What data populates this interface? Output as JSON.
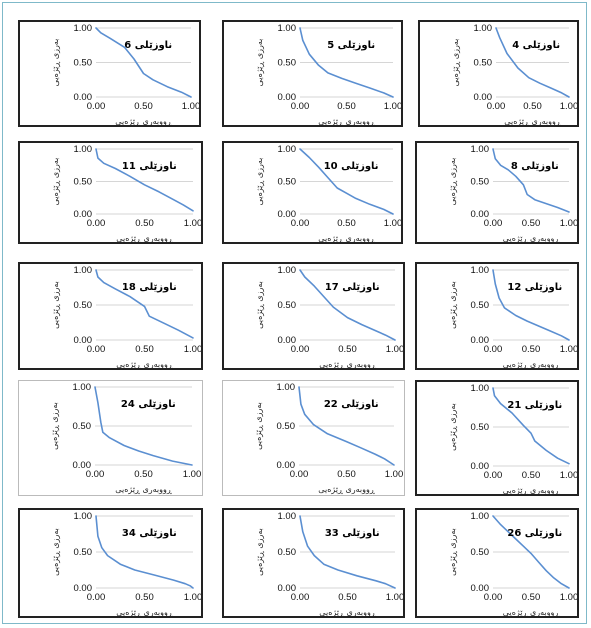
{
  "colors": {
    "curve": "#5b8fd1",
    "axis": "#c8c8c8",
    "frame": "#7fb9c9"
  },
  "charts": [
    {
      "title": "ناوزێلی 6",
      "ylabel": "بەرزی ڕێژەیی",
      "xlabel": "ڕووبەری ڕێژەیی",
      "x_ticks": [
        "0.00",
        "0.50",
        "1.00"
      ],
      "y_ticks": [
        "0.00",
        "0.50",
        "1.00"
      ]
    },
    {
      "title": "ناوزێلی 5",
      "ylabel": "بەرزی ڕێژەیی",
      "xlabel": "ڕووبەری ڕێژەیی",
      "x_ticks": [
        "0.00",
        "0.50",
        "1.00"
      ],
      "y_ticks": [
        "0.00",
        "0.50",
        "1.00"
      ]
    },
    {
      "title": "ناوزێلی 4",
      "ylabel": "بەرزی ڕێژەیی",
      "xlabel": "ڕووبەری ڕێژەیی",
      "x_ticks": [
        "0.00",
        "0.50",
        "1.00"
      ],
      "y_ticks": [
        "0.00",
        "0.50",
        "1.00"
      ]
    },
    {
      "title": "ناوزێلی 11",
      "ylabel": "بەرزی ڕێژەیی",
      "xlabel": "ڕووبەری ڕێژەیی",
      "x_ticks": [
        "0.00",
        "0.50",
        "1.00"
      ],
      "y_ticks": [
        "0.00",
        "0.50",
        "1.00"
      ]
    },
    {
      "title": "ناوزێلی 10",
      "ylabel": "بەرزی ڕێژەیی",
      "xlabel": "ڕووبەری ڕێژەیی",
      "x_ticks": [
        "0.00",
        "0.50",
        "1.00"
      ],
      "y_ticks": [
        "0.00",
        "0.50",
        "1.00"
      ]
    },
    {
      "title": "ناوزێلی 8",
      "ylabel": "بەرزی ڕێژەیی",
      "xlabel": "ڕووبەری ڕێژەیی",
      "x_ticks": [
        "0.00",
        "0.50",
        "1.00"
      ],
      "y_ticks": [
        "0.00",
        "0.50",
        "1.00"
      ]
    },
    {
      "title": "ناوزێلی 18",
      "ylabel": "بەرزی ڕێژەیی",
      "xlabel": "ڕووبەری ڕێژەیی",
      "x_ticks": [
        "0.00",
        "0.50",
        "1.00"
      ],
      "y_ticks": [
        "0.00",
        "0.50",
        "1.00"
      ]
    },
    {
      "title": "ناوزێلی 17",
      "ylabel": "بەرزی ڕێژەیی",
      "xlabel": "ڕووبەری ڕێژەیی",
      "x_ticks": [
        "0.00",
        "0.50",
        "1.00"
      ],
      "y_ticks": [
        "0.00",
        "0.50",
        "1.00"
      ]
    },
    {
      "title": "ناوزێلی 12",
      "ylabel": "بەرزی ڕێژەیی",
      "xlabel": "ڕووبەری ڕێژەیی",
      "x_ticks": [
        "0.00",
        "0.50",
        "1.00"
      ],
      "y_ticks": [
        "0.00",
        "0.50",
        "1.00"
      ]
    },
    {
      "title": "ناوزێلی 24",
      "ylabel": "بەرزی ڕێژەیی",
      "xlabel": "ڕووبەری ڕێژەیی",
      "x_ticks": [
        "0.00",
        "0.50",
        "1.00"
      ],
      "y_ticks": [
        "0.00",
        "0.50",
        "1.00"
      ]
    },
    {
      "title": "ناوزێلی 22",
      "ylabel": "بەرزی ڕێژەیی",
      "xlabel": "ڕووبەری ڕێژەیی",
      "x_ticks": [
        "0.00",
        "0.50",
        "1.00"
      ],
      "y_ticks": [
        "0.00",
        "0.50",
        "1.00"
      ]
    },
    {
      "title": "ناوزێلی 21",
      "ylabel": "بەرزی ڕێژەیی",
      "xlabel": "ڕووبەری ڕێژەیی",
      "x_ticks": [
        "0.00",
        "0.50",
        "1.00"
      ],
      "y_ticks": [
        "0.00",
        "0.50",
        "1.00"
      ]
    },
    {
      "title": "ناوزێلی 34",
      "ylabel": "بەرزی ڕێژەیی",
      "xlabel": "ڕووبەری ڕێژەیی",
      "x_ticks": [
        "0.00",
        "0.50",
        "1.00"
      ],
      "y_ticks": [
        "0.00",
        "0.50",
        "1.00"
      ]
    },
    {
      "title": "ناوزێلی 33",
      "ylabel": "بەرزی ڕێژەیی",
      "xlabel": "ڕووبەری ڕێژەیی",
      "x_ticks": [
        "0.00",
        "0.50",
        "1.00"
      ],
      "y_ticks": [
        "0.00",
        "0.50",
        "1.00"
      ]
    },
    {
      "title": "ناوزێلی 26",
      "ylabel": "بەرزی ڕێژەیی",
      "xlabel": "ڕووبەری ڕێژەیی",
      "x_ticks": [
        "0.00",
        "0.50",
        "1.00"
      ],
      "y_ticks": [
        "0.00",
        "0.50",
        "1.00"
      ]
    }
  ],
  "chart_data": [
    {
      "type": "line",
      "title": "ناوزێلی 6",
      "xlabel": "ڕووبەری ڕێژەیی",
      "ylabel": "بەرزی ڕێژەیی",
      "xlim": [
        0,
        1
      ],
      "ylim": [
        0,
        1
      ],
      "grid": true,
      "series": [
        {
          "x": [
            0,
            0.05,
            0.15,
            0.3,
            0.4,
            0.5,
            0.6,
            0.75,
            0.9,
            1.0
          ],
          "y": [
            1.0,
            0.93,
            0.85,
            0.72,
            0.55,
            0.34,
            0.25,
            0.15,
            0.07,
            0.0
          ]
        }
      ]
    },
    {
      "type": "line",
      "title": "ناوزێلی 5",
      "xlabel": "ڕووبەری ڕێژەیی",
      "ylabel": "بەرزی ڕێژەیی",
      "xlim": [
        0,
        1
      ],
      "ylim": [
        0,
        1
      ],
      "grid": true,
      "series": [
        {
          "x": [
            0,
            0.03,
            0.1,
            0.2,
            0.3,
            0.45,
            0.6,
            0.75,
            0.9,
            1.0
          ],
          "y": [
            1.0,
            0.82,
            0.62,
            0.46,
            0.35,
            0.27,
            0.2,
            0.13,
            0.06,
            0.0
          ]
        }
      ]
    },
    {
      "type": "line",
      "title": "ناوزێلی 4",
      "xlabel": "ڕووبەری ڕێژەیی",
      "ylabel": "بەرزی ڕێژەیی",
      "xlim": [
        0,
        1
      ],
      "ylim": [
        0,
        1
      ],
      "grid": true,
      "series": [
        {
          "x": [
            0,
            0.05,
            0.15,
            0.3,
            0.45,
            0.6,
            0.75,
            0.9,
            1.0
          ],
          "y": [
            1.0,
            0.86,
            0.63,
            0.42,
            0.28,
            0.2,
            0.13,
            0.06,
            0.0
          ]
        }
      ]
    },
    {
      "type": "line",
      "title": "ناوزێلی 11",
      "xlabel": "ڕووبەری ڕێژەیی",
      "ylabel": "بەرزی ڕێژەیی",
      "xlim": [
        0,
        1
      ],
      "ylim": [
        0,
        1
      ],
      "grid": true,
      "series": [
        {
          "x": [
            0,
            0.02,
            0.08,
            0.2,
            0.35,
            0.5,
            0.65,
            0.8,
            0.9,
            1.0
          ],
          "y": [
            1.0,
            0.86,
            0.78,
            0.7,
            0.58,
            0.45,
            0.34,
            0.22,
            0.14,
            0.05
          ]
        }
      ]
    },
    {
      "type": "line",
      "title": "ناوزێلی 10",
      "xlabel": "ڕووبەری ڕێژەیی",
      "ylabel": "بەرزی ڕێژەیی",
      "xlim": [
        0,
        1
      ],
      "ylim": [
        0,
        1
      ],
      "grid": true,
      "series": [
        {
          "x": [
            0,
            0.1,
            0.2,
            0.3,
            0.4,
            0.5,
            0.6,
            0.75,
            0.9,
            1.0
          ],
          "y": [
            1.0,
            0.87,
            0.72,
            0.56,
            0.4,
            0.32,
            0.24,
            0.15,
            0.07,
            0.0
          ]
        }
      ]
    },
    {
      "type": "line",
      "title": "ناوزێلی 8",
      "xlabel": "ڕووبەری ڕێژەیی",
      "ylabel": "بەرزی ڕێژەیی",
      "xlim": [
        0,
        1
      ],
      "ylim": [
        0,
        1
      ],
      "grid": true,
      "series": [
        {
          "x": [
            0,
            0.03,
            0.1,
            0.2,
            0.3,
            0.4,
            0.45,
            0.55,
            0.7,
            0.85,
            1.0
          ],
          "y": [
            1.0,
            0.85,
            0.75,
            0.68,
            0.58,
            0.45,
            0.3,
            0.22,
            0.16,
            0.1,
            0.03
          ]
        }
      ]
    },
    {
      "type": "line",
      "title": "ناوزێلی 18",
      "xlabel": "ڕووبەری ڕێژەیی",
      "ylabel": "بەرزی ڕێژەیی",
      "xlim": [
        0,
        1
      ],
      "ylim": [
        0,
        1
      ],
      "grid": true,
      "series": [
        {
          "x": [
            0,
            0.02,
            0.08,
            0.2,
            0.35,
            0.5,
            0.55,
            0.7,
            0.85,
            1.0
          ],
          "y": [
            1.0,
            0.9,
            0.82,
            0.73,
            0.62,
            0.48,
            0.34,
            0.24,
            0.14,
            0.03
          ]
        }
      ]
    },
    {
      "type": "line",
      "title": "ناوزێلی 17",
      "xlabel": "ڕووبەری ڕێژەیی",
      "ylabel": "بەرزی ڕێژەیی",
      "xlim": [
        0,
        1
      ],
      "ylim": [
        0,
        1
      ],
      "grid": true,
      "series": [
        {
          "x": [
            0,
            0.05,
            0.15,
            0.25,
            0.35,
            0.5,
            0.65,
            0.8,
            0.9,
            1.0
          ],
          "y": [
            1.0,
            0.9,
            0.77,
            0.62,
            0.47,
            0.32,
            0.22,
            0.13,
            0.07,
            0.0
          ]
        }
      ]
    },
    {
      "type": "line",
      "title": "ناوزێلی 12",
      "xlabel": "ڕووبەری ڕێژەیی",
      "ylabel": "بەرزی ڕێژەیی",
      "xlim": [
        0,
        1
      ],
      "ylim": [
        0,
        1
      ],
      "grid": true,
      "series": [
        {
          "x": [
            0,
            0.03,
            0.08,
            0.15,
            0.3,
            0.45,
            0.6,
            0.75,
            0.9,
            1.0
          ],
          "y": [
            1.0,
            0.8,
            0.6,
            0.46,
            0.35,
            0.27,
            0.2,
            0.13,
            0.06,
            0.0
          ]
        }
      ]
    },
    {
      "type": "line",
      "title": "ناوزێلی 24",
      "xlabel": "ڕووبەری ڕێژەیی",
      "ylabel": "بەرزی ڕێژەیی",
      "xlim": [
        0,
        1
      ],
      "ylim": [
        0,
        1
      ],
      "grid": true,
      "series": [
        {
          "x": [
            0,
            0.03,
            0.06,
            0.08,
            0.15,
            0.3,
            0.45,
            0.6,
            0.8,
            1.0
          ],
          "y": [
            1.0,
            0.8,
            0.55,
            0.42,
            0.35,
            0.25,
            0.18,
            0.12,
            0.05,
            0.0
          ]
        }
      ]
    },
    {
      "type": "line",
      "title": "ناوزێلی 22",
      "xlabel": "ڕووبەری ڕێژەیی",
      "ylabel": "بەرزی ڕێژەیی",
      "xlim": [
        0,
        1
      ],
      "ylim": [
        0,
        1
      ],
      "grid": true,
      "series": [
        {
          "x": [
            0,
            0.02,
            0.06,
            0.15,
            0.3,
            0.5,
            0.65,
            0.8,
            0.9,
            1.0
          ],
          "y": [
            1.0,
            0.78,
            0.65,
            0.52,
            0.4,
            0.3,
            0.22,
            0.14,
            0.08,
            0.0
          ]
        }
      ]
    },
    {
      "type": "line",
      "title": "ناوزێلی 21",
      "xlabel": "ڕووبەری ڕێژەیی",
      "ylabel": "بەرزی ڕێژەیی",
      "xlim": [
        0,
        1
      ],
      "ylim": [
        0,
        1
      ],
      "grid": true,
      "series": [
        {
          "x": [
            0,
            0.02,
            0.1,
            0.25,
            0.4,
            0.5,
            0.55,
            0.7,
            0.85,
            1.0
          ],
          "y": [
            1.0,
            0.9,
            0.8,
            0.68,
            0.52,
            0.42,
            0.32,
            0.2,
            0.1,
            0.03
          ]
        }
      ]
    },
    {
      "type": "line",
      "title": "ناوزێلی 34",
      "xlabel": "ڕووبەری ڕێژەیی",
      "ylabel": "بەرزی ڕێژەیی",
      "xlim": [
        0,
        1
      ],
      "ylim": [
        0,
        1
      ],
      "grid": true,
      "series": [
        {
          "x": [
            0,
            0.02,
            0.06,
            0.12,
            0.25,
            0.4,
            0.6,
            0.8,
            0.92,
            0.97,
            1.0
          ],
          "y": [
            1.0,
            0.72,
            0.56,
            0.45,
            0.33,
            0.25,
            0.18,
            0.11,
            0.06,
            0.03,
            0.0
          ]
        }
      ]
    },
    {
      "type": "line",
      "title": "ناوزێلی 33",
      "xlabel": "ڕووبەری ڕێژەیی",
      "ylabel": "بەرزی ڕێژەیی",
      "xlim": [
        0,
        1
      ],
      "ylim": [
        0,
        1
      ],
      "grid": true,
      "series": [
        {
          "x": [
            0,
            0.03,
            0.08,
            0.15,
            0.25,
            0.4,
            0.6,
            0.8,
            0.9,
            1.0
          ],
          "y": [
            1.0,
            0.78,
            0.58,
            0.45,
            0.33,
            0.25,
            0.17,
            0.1,
            0.06,
            0.0
          ]
        }
      ]
    },
    {
      "type": "line",
      "title": "ناوزێلی 26",
      "xlabel": "ڕووبەری ڕێژەیی",
      "ylabel": "بەرزی ڕێژەیی",
      "xlim": [
        0,
        1
      ],
      "ylim": [
        0,
        1
      ],
      "grid": true,
      "series": [
        {
          "x": [
            0,
            0.1,
            0.2,
            0.3,
            0.4,
            0.5,
            0.6,
            0.7,
            0.8,
            0.9,
            1.0
          ],
          "y": [
            1.0,
            0.88,
            0.78,
            0.68,
            0.58,
            0.48,
            0.36,
            0.24,
            0.14,
            0.06,
            0.0
          ]
        }
      ]
    }
  ]
}
